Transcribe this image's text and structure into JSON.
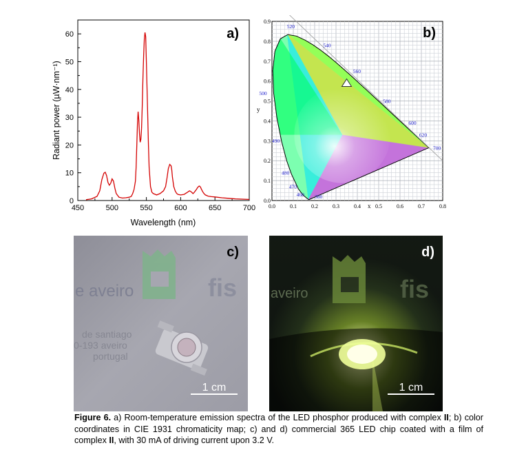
{
  "figure": {
    "caption_label": "Figure 6.",
    "caption_seg1": " a) Room-temperature emission spectra of the LED phosphor produced with complex ",
    "caption_b1": "II",
    "caption_seg2": "; b) color coordinates in CIE 1931 chromaticity map; c) and d) commercial 365 LED chip coated with a film of complex ",
    "caption_b2": "II",
    "caption_seg3": ", with 30 mA of driving current upon 3.2 V."
  },
  "panel_labels": {
    "a": "a)",
    "b": "b)",
    "c": "c)",
    "d": "d)"
  },
  "chart_data": [
    {
      "type": "line",
      "title": "",
      "xlabel": "Wavelength (nm)",
      "ylabel": "Radiant power (µW·nm⁻¹)",
      "xlim": [
        450,
        700
      ],
      "ylim": [
        0,
        65
      ],
      "xticks": [
        450,
        500,
        550,
        600,
        650,
        700
      ],
      "yticks": [
        0,
        10,
        20,
        30,
        40,
        50,
        60
      ],
      "grid": false,
      "line_color": "#d40000",
      "series": [
        {
          "x": [
            462,
            470,
            478,
            482,
            485,
            488,
            490,
            492,
            494,
            496,
            498,
            500,
            502,
            504,
            506,
            510,
            515,
            520,
            525,
            528,
            530,
            532,
            534,
            535,
            536,
            537,
            538,
            539,
            540,
            541,
            542,
            543,
            544,
            545,
            546,
            547,
            548,
            549,
            550,
            551,
            552,
            553,
            554,
            556,
            558,
            560,
            565,
            570,
            575,
            578,
            580,
            582,
            584,
            586,
            587,
            588,
            590,
            592,
            594,
            596,
            600,
            605,
            610,
            613,
            615,
            616,
            618,
            620,
            623,
            625,
            627,
            628,
            629,
            630,
            632,
            634,
            636,
            640,
            645,
            650,
            660,
            670,
            680,
            690,
            700
          ],
          "y": [
            0.3,
            0.6,
            1.5,
            3.5,
            7.5,
            9.8,
            10.2,
            9.0,
            6.5,
            5.5,
            6.2,
            7.8,
            7.0,
            4.5,
            2.5,
            1.2,
            0.9,
            1.0,
            1.2,
            1.5,
            2.5,
            4.0,
            7.0,
            12.0,
            20.0,
            28.0,
            32.0,
            29.0,
            24.0,
            21.0,
            22.0,
            26.0,
            34.0,
            44.0,
            52.0,
            58.0,
            60.5,
            59.0,
            50.0,
            40.0,
            30.0,
            20.0,
            12.0,
            5.0,
            3.0,
            2.5,
            2.0,
            2.5,
            3.5,
            5.0,
            8.0,
            11.5,
            13.0,
            12.5,
            11.0,
            8.5,
            5.0,
            3.5,
            2.6,
            2.2,
            2.0,
            2.2,
            3.0,
            3.5,
            3.2,
            3.0,
            2.5,
            3.0,
            4.0,
            4.8,
            5.2,
            5.1,
            4.8,
            4.2,
            3.2,
            2.5,
            2.0,
            1.6,
            1.4,
            1.3,
            1.0,
            0.8,
            0.6,
            0.5,
            0.4
          ]
        }
      ]
    },
    {
      "type": "scatter",
      "title": "",
      "xlabel": "x",
      "ylabel": "y",
      "xlim": [
        0,
        0.8
      ],
      "ylim": [
        0,
        0.9
      ],
      "xticks": [
        "0.0",
        "0.1",
        "0.2",
        "0.3",
        "0.4",
        "0.5",
        "0.6",
        "0.7",
        "0.8"
      ],
      "yticks": [
        "0.0",
        "0.1",
        "0.2",
        "0.3",
        "0.4",
        "0.5",
        "0.6",
        "0.7",
        "0.8",
        "0.9"
      ],
      "grid": true,
      "wavelength_labels": [
        "380",
        "460",
        "470",
        "480",
        "490",
        "500",
        "520",
        "540",
        "560",
        "580",
        "600",
        "620",
        "700"
      ],
      "series": [
        {
          "x": [
            0.35
          ],
          "y": [
            0.59
          ]
        }
      ]
    }
  ],
  "photos": {
    "c_text_aveiro": "e aveiro",
    "c_text_fis": "fis",
    "c_text_addr1": "de santiago",
    "c_text_addr2": "0-193 aveiro",
    "c_text_addr3": "portugal",
    "d_text_aveiro": "aveiro",
    "d_text_fis": "fis",
    "scale_c": "1 cm",
    "scale_d": "1 cm"
  }
}
